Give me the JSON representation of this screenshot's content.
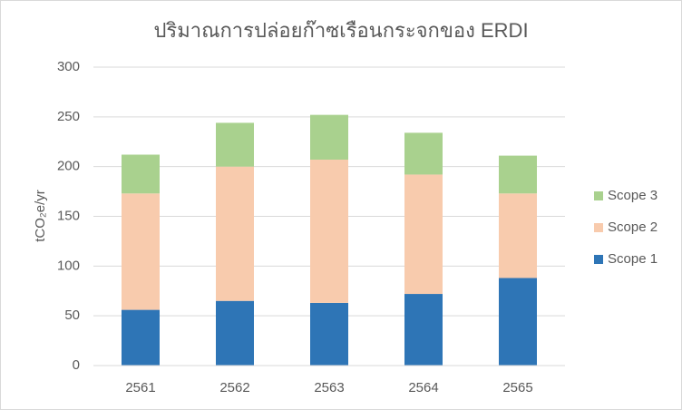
{
  "chart_data": {
    "type": "stacked_bar",
    "title": "ปริมาณการปล่อยก๊าซเรือนกระจกของ ERDI",
    "y_label": "tCO₂e/yr",
    "categories": [
      "2561",
      "2562",
      "2563",
      "2564",
      "2565"
    ],
    "series": [
      {
        "name": "Scope 1",
        "color": "#2e75b6",
        "values": [
          56,
          65,
          63,
          72,
          88
        ]
      },
      {
        "name": "Scope 2",
        "color": "#f8cbad",
        "values": [
          117,
          135,
          144,
          120,
          85
        ]
      },
      {
        "name": "Scope 3",
        "color": "#a9d18e",
        "values": [
          39,
          44,
          45,
          42,
          38
        ]
      }
    ],
    "ylim": [
      0,
      300
    ],
    "yticks": [
      0,
      50,
      100,
      150,
      200,
      250,
      300
    ],
    "grid": true,
    "legend": "right"
  }
}
